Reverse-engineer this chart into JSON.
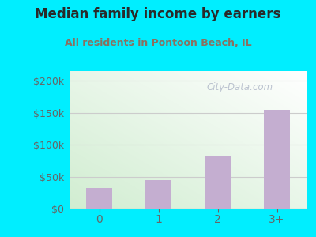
{
  "title": "Median family income by earners",
  "subtitle": "All residents in Pontoon Beach, IL",
  "categories": [
    "0",
    "1",
    "2",
    "3+"
  ],
  "values": [
    32000,
    45000,
    82000,
    155000
  ],
  "bar_color": "#c4aed0",
  "title_color": "#2a2a2a",
  "subtitle_color": "#8a7060",
  "bg_outer_color": "#00eeff",
  "yticks": [
    0,
    50000,
    100000,
    150000,
    200000
  ],
  "ytick_labels": [
    "$0",
    "$50k",
    "$100k",
    "$150k",
    "$200k"
  ],
  "ylim": [
    0,
    215000
  ],
  "watermark": "City-Data.com",
  "watermark_color": "#b0b8c8",
  "grid_color": "#cccccc"
}
